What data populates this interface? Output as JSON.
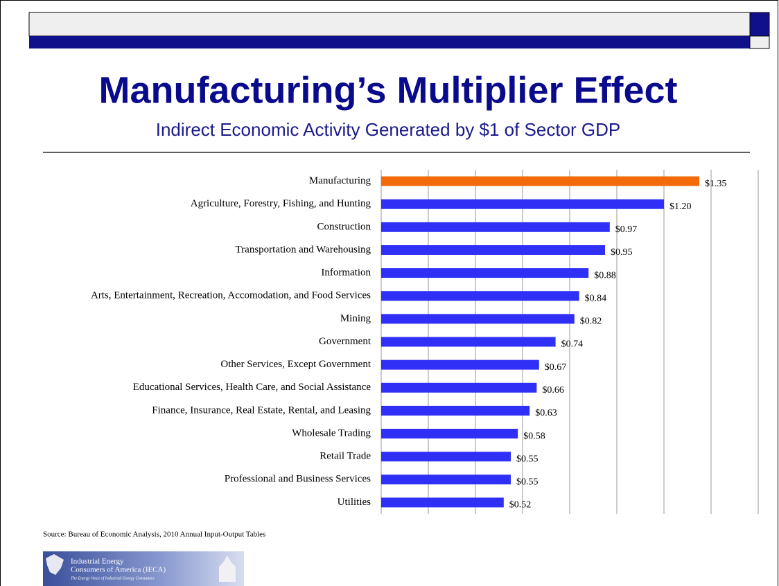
{
  "chart_data": {
    "type": "bar",
    "orientation": "horizontal",
    "title": "Manufacturing’s Multiplier Effect",
    "subtitle": "Indirect Economic Activity Generated by $1 of Sector GDP",
    "categories": [
      "Manufacturing",
      "Agriculture, Forestry, Fishing, and Hunting",
      "Construction",
      "Transportation and Warehousing",
      "Information",
      "Arts, Entertainment, Recreation, Accomodation, and Food Services",
      "Mining",
      "Government",
      "Other Services, Except Government",
      "Educational Services, Health Care, and Social Assistance",
      "Finance, Insurance, Real Estate, Rental, and Leasing",
      "Wholesale Trading",
      "Retail Trade",
      "Professional and Business Services",
      "Utilities"
    ],
    "values": [
      1.35,
      1.2,
      0.97,
      0.95,
      0.88,
      0.84,
      0.82,
      0.74,
      0.67,
      0.66,
      0.63,
      0.58,
      0.55,
      0.55,
      0.52
    ],
    "value_labels": [
      "$1.35",
      "$1.20",
      "$0.97",
      "$0.95",
      "$0.88",
      "$0.84",
      "$0.82",
      "$0.74",
      "$0.67",
      "$0.66",
      "$0.63",
      "$0.58",
      "$0.55",
      "$0.55",
      "$0.52"
    ],
    "colors": [
      "#f26a0a",
      "#2f2ff5",
      "#2f2ff5",
      "#2f2ff5",
      "#2f2ff5",
      "#2f2ff5",
      "#2f2ff5",
      "#2f2ff5",
      "#2f2ff5",
      "#2f2ff5",
      "#2f2ff5",
      "#2f2ff5",
      "#2f2ff5",
      "#2f2ff5",
      "#2f2ff5"
    ],
    "xlim": [
      0,
      1.6
    ],
    "grid_lines": [
      0.2,
      0.4,
      0.6,
      0.8,
      1.0,
      1.2,
      1.4,
      1.6
    ],
    "grid": true,
    "source": "Source: Bureau of Economic Analysis, 2010 Annual Input-Output Tables",
    "logo": {
      "name_line1": "Industrial Energy",
      "name_line2": "Consumers of America (IECA)",
      "tagline": "The Energy Voice of Industrial Energy Consumers"
    }
  }
}
